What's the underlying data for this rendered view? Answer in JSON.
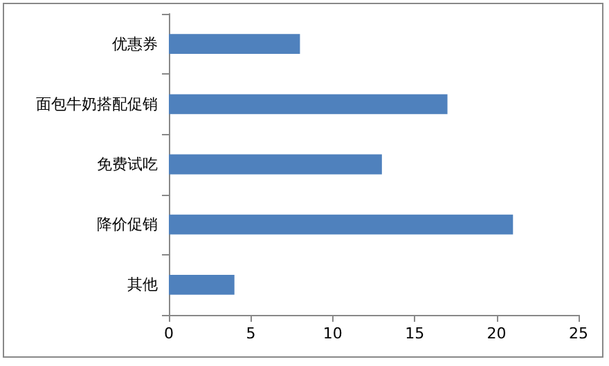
{
  "chart_data": {
    "type": "bar",
    "orientation": "horizontal",
    "categories": [
      "优惠券",
      "面包牛奶搭配促销",
      "免费试吃",
      "降价促销",
      "其他"
    ],
    "values": [
      8,
      17,
      13,
      21,
      4
    ],
    "color": "#4f81bd",
    "xlim": [
      0,
      25
    ],
    "xticks": [
      0,
      5,
      10,
      15,
      20,
      25
    ]
  }
}
